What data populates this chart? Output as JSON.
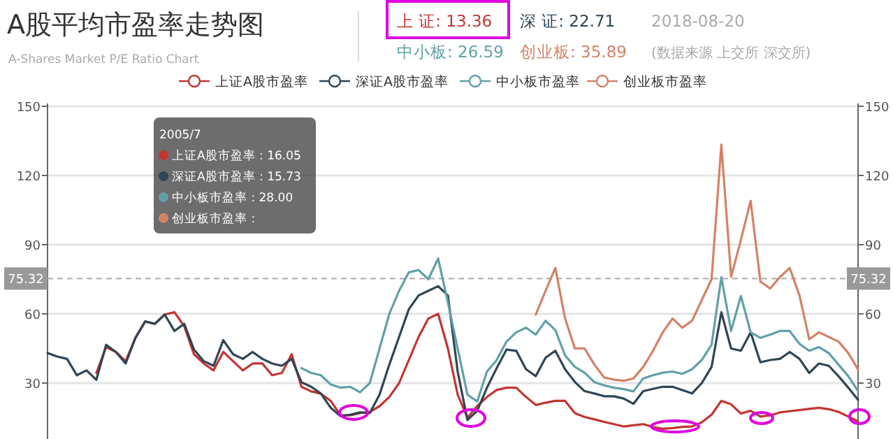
{
  "chart_data": {
    "type": "line",
    "title": "A股平均市盈率走势图",
    "subtitle": "A-Shares Market P/E Ratio Chart",
    "annotations": [
      "上 证: 13.36",
      "深 证: 22.71",
      "中小板: 26.59",
      "创业板: 35.89",
      "2018-08-20",
      "(数据来源 上交所 深交所)",
      "2005/7",
      "上证A股市盈率 : 16.05",
      "深证A股市盈率 : 15.73",
      "中小板市盈率 : 28.00",
      "创业板市盈率 :"
    ],
    "categories": [
      null,
      null,
      null,
      null,
      null,
      null,
      null,
      null,
      null,
      null,
      null,
      null,
      null,
      null,
      null,
      null,
      null,
      null,
      null,
      null,
      null,
      null,
      null,
      null,
      null,
      null,
      null,
      null,
      null,
      null,
      null,
      null,
      null,
      null,
      null,
      null,
      null,
      null,
      null,
      null,
      null,
      null,
      null,
      null,
      null,
      null,
      null,
      null,
      null,
      null,
      null,
      null,
      null,
      null,
      null,
      null,
      null,
      null,
      null,
      null,
      null,
      null,
      null,
      null,
      null,
      null,
      null,
      null,
      null,
      null,
      null,
      null,
      null,
      null,
      null,
      null,
      null,
      null,
      null,
      null,
      null,
      null,
      null,
      null
    ],
    "series": [
      {
        "name": "上证A股市盈率",
        "color": "#c23531",
        "values": [
          null,
          null,
          null,
          null,
          null,
          34.4,
          45.6,
          43.5,
          39.5,
          49.6,
          56.7,
          55.7,
          59.7,
          60.7,
          54.6,
          42.5,
          38.5,
          35.5,
          43.5,
          39.5,
          35.5,
          38.5,
          38.5,
          33.4,
          34.4,
          42.5,
          28.4,
          26.4,
          25.4,
          22.3,
          16.1,
          16,
          17,
          17.5,
          20,
          24,
          30,
          40,
          50,
          58,
          60,
          45,
          25,
          15,
          20,
          24,
          27,
          28,
          28,
          24,
          20.5,
          21.5,
          22.3,
          22.3,
          17,
          15.3,
          14.3,
          13.2,
          12.2,
          11.2,
          11.7,
          12.2,
          11,
          10.2,
          10.5,
          11,
          11.2,
          13,
          16.3,
          22.3,
          20.8,
          16.8,
          18,
          15.5,
          16,
          17.3,
          17.8,
          18.3,
          18.8,
          19.3,
          18.7,
          17.5,
          15.5,
          13.36
        ]
      },
      {
        "name": "深证A股市盈率",
        "color": "#2f4554",
        "values": [
          43,
          41.5,
          40.5,
          33.4,
          35.5,
          31.4,
          46.6,
          43.5,
          38.5,
          49.6,
          56.7,
          55.7,
          59.7,
          52.6,
          55.7,
          44.5,
          39.5,
          37.5,
          48.6,
          42.5,
          40.5,
          43.5,
          40.5,
          38.5,
          37.5,
          40.5,
          30.4,
          28.4,
          25.4,
          19.3,
          15.7,
          16.3,
          17.3,
          17,
          25,
          38,
          50,
          62,
          68,
          70,
          72,
          68,
          35,
          14,
          18,
          28,
          36.5,
          44.5,
          44,
          36,
          33,
          41,
          44,
          36,
          30.5,
          26.5,
          25.5,
          24.3,
          24.3,
          23.3,
          21,
          26.5,
          27.5,
          28.4,
          28.4,
          27,
          25.5,
          30,
          37,
          60.7,
          45,
          44,
          52,
          39,
          40,
          40.5,
          43.5,
          40.5,
          34.4,
          38.5,
          37.5,
          33,
          28,
          22.71
        ]
      },
      {
        "name": "中小板市盈率",
        "color": "#61a0a8",
        "values": [
          null,
          null,
          null,
          null,
          null,
          null,
          null,
          null,
          null,
          null,
          null,
          null,
          null,
          null,
          null,
          null,
          null,
          null,
          null,
          null,
          null,
          null,
          null,
          null,
          null,
          null,
          36.5,
          34.4,
          33.4,
          29.4,
          28,
          28.4,
          26,
          30,
          45,
          60,
          70,
          78,
          79,
          75,
          84,
          65,
          45,
          25,
          22,
          35,
          40,
          48,
          52,
          54,
          51,
          57,
          53,
          42,
          37,
          34.5,
          30.4,
          29,
          28,
          27.4,
          26.4,
          32,
          33.4,
          34.5,
          35,
          34,
          36,
          40,
          46.6,
          75.9,
          52.6,
          67.8,
          52,
          49.6,
          51,
          52.6,
          52.6,
          47,
          44,
          45.6,
          43,
          38,
          33,
          26.59
        ]
      },
      {
        "name": "创业板市盈率",
        "color": "#d48265",
        "values": [
          null,
          null,
          null,
          null,
          null,
          null,
          null,
          null,
          null,
          null,
          null,
          null,
          null,
          null,
          null,
          null,
          null,
          null,
          null,
          null,
          null,
          null,
          null,
          null,
          null,
          null,
          null,
          null,
          null,
          null,
          null,
          null,
          null,
          null,
          null,
          null,
          null,
          null,
          null,
          null,
          null,
          null,
          null,
          null,
          null,
          null,
          null,
          null,
          null,
          null,
          59.7,
          70,
          79.9,
          58,
          45,
          45,
          38,
          32.4,
          31.5,
          31,
          32,
          37,
          44,
          52,
          58,
          54,
          57,
          66,
          75,
          133.4,
          76,
          92,
          109,
          74,
          71,
          76,
          79.9,
          68,
          49,
          52,
          50,
          48,
          43,
          35.89
        ]
      }
    ],
    "ylim": [
      6,
      150
    ],
    "yticks": [
      30,
      60,
      90,
      120,
      150
    ],
    "y2lim": [
      6,
      150
    ],
    "y2ticks": [
      30,
      60,
      90,
      120,
      150
    ],
    "ref_lines": [
      {
        "axis": "y",
        "value": 75.32,
        "label": "75.32",
        "color": "#aaaaaa",
        "line_style": "dashed"
      }
    ],
    "grid": "y",
    "legend": "top"
  }
}
